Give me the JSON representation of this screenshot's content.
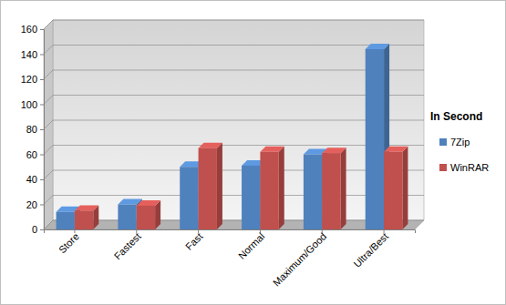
{
  "chart_data": {
    "type": "bar",
    "categories": [
      "Store",
      "Fastest",
      "Fast",
      "Normal",
      "Maximum/Good",
      "Ultra/Best"
    ],
    "series": [
      {
        "name": "7Zip",
        "color": "#4f81bd",
        "values": [
          14,
          20,
          50,
          51,
          60,
          144
        ]
      },
      {
        "name": "WinRAR",
        "color": "#c0504d",
        "values": [
          15,
          19,
          65,
          62,
          61,
          62
        ]
      }
    ],
    "legend_title": "In Second",
    "ylim": [
      0,
      160
    ],
    "yticks": [
      0,
      20,
      40,
      60,
      80,
      100,
      120,
      140,
      160
    ],
    "grid": true,
    "legend": "right"
  }
}
